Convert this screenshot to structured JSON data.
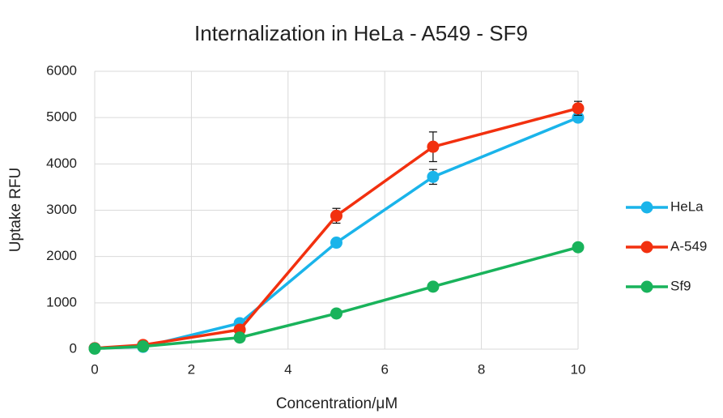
{
  "chart_data": {
    "type": "line",
    "title": "Internalization in HeLa - A549 - SF9",
    "x_label": "Concentration/μM",
    "y_label": "Uptake RFU",
    "x": [
      0,
      1,
      3,
      5,
      7,
      10
    ],
    "series": [
      {
        "name": "HeLa",
        "color": "#1ab4ea",
        "values": [
          20,
          50,
          560,
          2300,
          3720,
          5000
        ],
        "errors": [
          20,
          20,
          80,
          80,
          160,
          80
        ]
      },
      {
        "name": "A-549",
        "color": "#f2300f",
        "values": [
          20,
          90,
          420,
          2880,
          4370,
          5200
        ],
        "errors": [
          20,
          20,
          60,
          160,
          320,
          150
        ]
      },
      {
        "name": "Sf9",
        "color": "#19b35b",
        "values": [
          10,
          60,
          250,
          770,
          1350,
          2200
        ],
        "errors": [
          20,
          20,
          30,
          60,
          60,
          40
        ]
      }
    ],
    "xlim": [
      0,
      10
    ],
    "xticks": [
      0,
      2,
      4,
      6,
      8,
      10
    ],
    "ylim": [
      0,
      6000
    ],
    "yticks": [
      0,
      1000,
      2000,
      3000,
      4000,
      5000,
      6000
    ],
    "grid": true,
    "legend": "right"
  }
}
